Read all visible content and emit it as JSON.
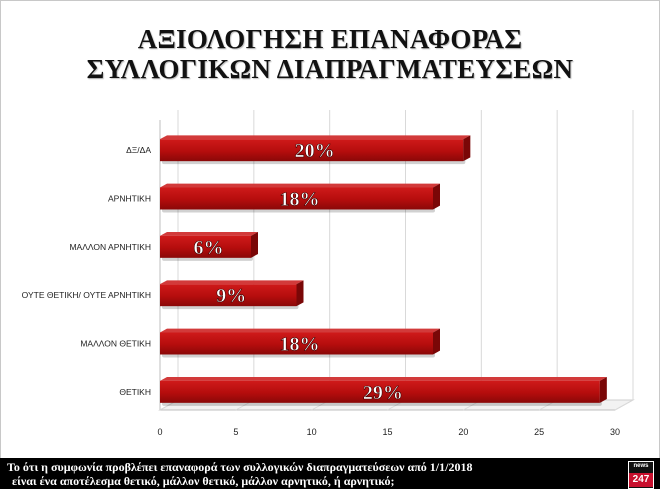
{
  "title_line1": "ΑΞΙΟΛΟΓΗΣΗ ΕΠΑΝΑΦΟΡΑΣ",
  "title_line2": "ΣΥΛΛΟΓΙΚΩΝ ΔΙΑΠΡΑΓΜΑΤΕΥΣΕΩΝ",
  "footer": {
    "line1": "Το ότι η συμφωνία προβλέπει επαναφορά των συλλογικών διαπραγματεύσεων από 1/1/2018",
    "line2": "είναι ένα αποτέλεσμα θετικό, μάλλον θετικό, μάλλον αρνητικό, ή αρνητικό;",
    "logo_top": "news",
    "logo_bottom": "247"
  },
  "colors": {
    "bar": "#b50d0d",
    "bar_dark": "#6e0606",
    "grid": "#d9d9d9"
  },
  "chart_data": {
    "type": "bar",
    "orientation": "horizontal",
    "categories": [
      "ΔΞ/ΔΑ",
      "ΑΡΝΗΤΙΚΗ",
      "ΜΑΛΛΟΝ ΑΡΝΗΤΙΚΗ",
      "ΟΥΤΕ ΘΕΤΙΚΗ/ ΟΥΤΕ ΑΡΝΗΤΙΚΗ",
      "ΜΑΛΛΟΝ ΘΕΤΙΚΗ",
      "ΘΕΤΙΚΗ"
    ],
    "values": [
      20,
      18,
      6,
      9,
      18,
      29
    ],
    "data_labels": [
      "20%",
      "18%",
      "6%",
      "9%",
      "18%",
      "29%"
    ],
    "xlim": [
      0,
      30
    ],
    "xticks": [
      "0",
      "5",
      "10",
      "15",
      "20",
      "25",
      "30"
    ],
    "grid": true
  }
}
